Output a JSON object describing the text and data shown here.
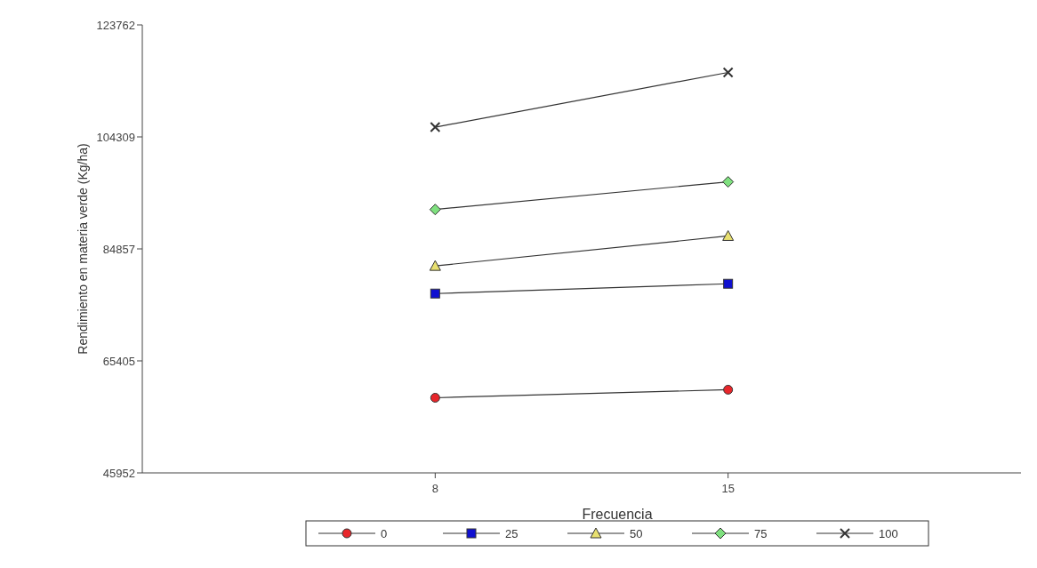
{
  "chart_data": {
    "type": "line",
    "xlabel": "Frecuencia",
    "ylabel": "Rendimiento en materia verde (Kg/ha)",
    "x": [
      8,
      15
    ],
    "xlim": [
      1,
      22
    ],
    "xticks": [
      8,
      15
    ],
    "ylim": [
      45952,
      123762
    ],
    "yticks": [
      45952,
      65405,
      84857,
      104309,
      123762
    ],
    "grid": false,
    "legend": "bottom",
    "series": [
      {
        "name": "0",
        "color": "#e8262b",
        "marker": "circle",
        "values": [
          59000,
          60400
        ]
      },
      {
        "name": "25",
        "color": "#1010d0",
        "marker": "square",
        "values": [
          77100,
          78800
        ]
      },
      {
        "name": "50",
        "color": "#e8e070",
        "marker": "triangle",
        "values": [
          81900,
          87100
        ]
      },
      {
        "name": "75",
        "color": "#7fe07f",
        "marker": "diamond",
        "values": [
          91700,
          96500
        ]
      },
      {
        "name": "100",
        "color": "#333333",
        "marker": "cross",
        "values": [
          106000,
          115500
        ]
      }
    ]
  }
}
